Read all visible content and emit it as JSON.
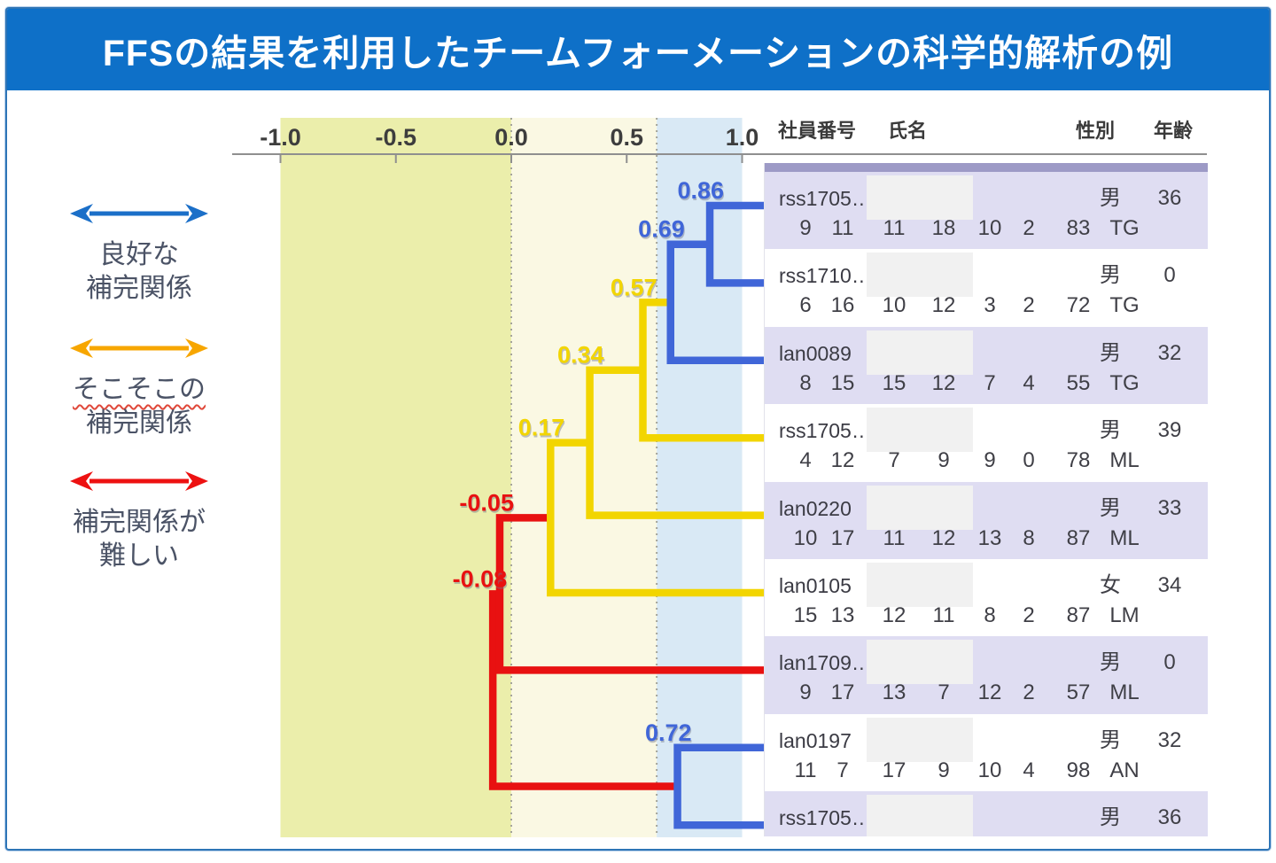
{
  "title": "FFSの結果を利用したチームフォーメーションの科学的解析の例",
  "legend": {
    "items": [
      {
        "label_lines": [
          "良好な",
          "補完関係"
        ],
        "arrow_color": "#1b6fc8"
      },
      {
        "label_lines": [
          "そこそこの",
          "補完関係"
        ],
        "arrow_color": "#f7a600"
      },
      {
        "label_lines": [
          "補完関係が",
          "難しい"
        ],
        "arrow_color": "#ed1111"
      }
    ]
  },
  "chart_data": {
    "type": "dendrogram",
    "orientation": "horizontal-right",
    "axis": {
      "tick_labels": [
        "-1.0",
        "-0.5",
        "0.0",
        "0.5",
        "1.0"
      ],
      "tick_values": [
        -1,
        -0.5,
        0,
        0.5,
        1
      ],
      "range": [
        -1,
        1
      ]
    },
    "zones": [
      {
        "from": -1,
        "to": 0,
        "color": "#ebeeab"
      },
      {
        "from": 0,
        "to": 0.63,
        "color": "#faf8e3"
      },
      {
        "from": 0.63,
        "to": 1,
        "color": "#d9e9f5"
      }
    ],
    "guide_lines": [
      0,
      0.63
    ],
    "leaf_order": [
      "rss1705…",
      "rss1710…",
      "lan0089",
      "rss1705…",
      "lan0220",
      "lan0105",
      "lan1709…",
      "lan0197",
      "rss1705…"
    ],
    "merges": [
      {
        "top": "L0",
        "bottom": "L1",
        "value": 0.86,
        "label": "0.86",
        "color": "#4066d8"
      },
      {
        "top": "M0",
        "bottom": "L2",
        "value": 0.69,
        "label": "0.69",
        "color": "#4066d8"
      },
      {
        "top": "M1",
        "bottom": "L3",
        "value": 0.57,
        "label": "0.57",
        "color": "#f2d500"
      },
      {
        "top": "M2",
        "bottom": "L4",
        "value": 0.34,
        "label": "0.34",
        "color": "#f2d500"
      },
      {
        "top": "M3",
        "bottom": "L5",
        "value": 0.17,
        "label": "0.17",
        "color": "#f2d500"
      },
      {
        "top": "M4",
        "bottom": "L6",
        "value": -0.05,
        "label": "-0.05",
        "color": "#e81111"
      },
      {
        "top": "L7",
        "bottom": "L8",
        "value": 0.72,
        "label": "0.72",
        "color": "#4066d8"
      },
      {
        "top": "M5",
        "bottom": "M6",
        "value": -0.08,
        "label": "-0.08",
        "color": "#e81111"
      }
    ],
    "draw_order": [
      7,
      5,
      4,
      3,
      2,
      1,
      0,
      6
    ]
  },
  "table": {
    "headers": [
      "社員番号",
      "氏名",
      "性別",
      "年齢"
    ],
    "rows": [
      {
        "id": "rss1705…",
        "gender": "男",
        "age": "36",
        "scores": [
          "9",
          "11",
          "11",
          "18",
          "10",
          "2",
          "83",
          "TG"
        ]
      },
      {
        "id": "rss1710…",
        "gender": "男",
        "age": "0",
        "scores": [
          "6",
          "16",
          "10",
          "12",
          "3",
          "2",
          "72",
          "TG"
        ]
      },
      {
        "id": "lan0089",
        "gender": "男",
        "age": "32",
        "scores": [
          "8",
          "15",
          "15",
          "12",
          "7",
          "4",
          "55",
          "TG"
        ]
      },
      {
        "id": "rss1705…",
        "gender": "男",
        "age": "39",
        "scores": [
          "4",
          "12",
          "7",
          "9",
          "9",
          "0",
          "78",
          "ML"
        ]
      },
      {
        "id": "lan0220",
        "gender": "男",
        "age": "33",
        "scores": [
          "10",
          "17",
          "11",
          "12",
          "13",
          "8",
          "87",
          "ML"
        ]
      },
      {
        "id": "lan0105",
        "gender": "女",
        "age": "34",
        "scores": [
          "15",
          "13",
          "12",
          "11",
          "8",
          "2",
          "87",
          "LM"
        ]
      },
      {
        "id": "lan1709…",
        "gender": "男",
        "age": "0",
        "scores": [
          "9",
          "17",
          "13",
          "7",
          "12",
          "2",
          "57",
          "ML"
        ]
      },
      {
        "id": "lan0197",
        "gender": "男",
        "age": "32",
        "scores": [
          "11",
          "7",
          "17",
          "9",
          "10",
          "4",
          "98",
          "AN"
        ]
      },
      {
        "id": "rss1705…",
        "gender": "男",
        "age": "36",
        "scores": []
      }
    ]
  }
}
